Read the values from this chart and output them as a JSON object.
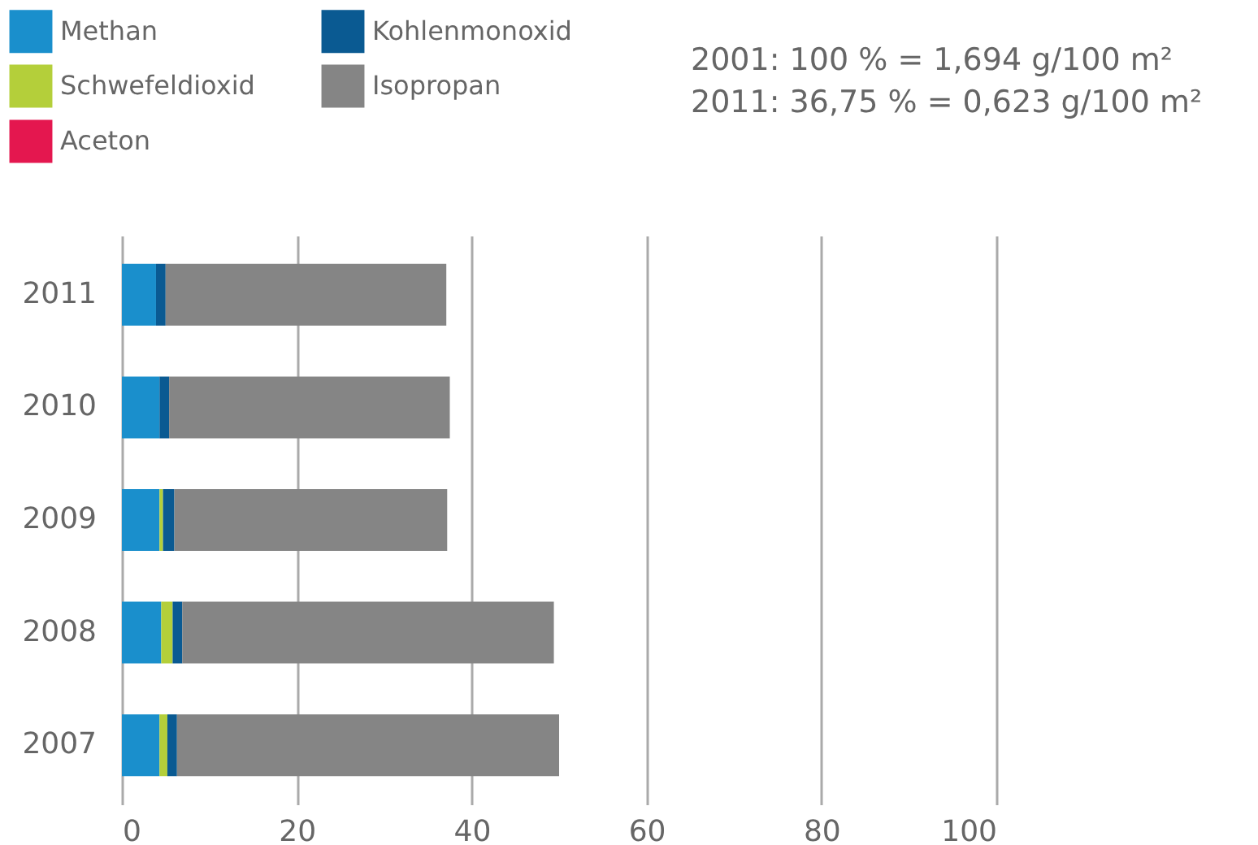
{
  "chart_data": {
    "type": "bar",
    "orientation": "horizontal",
    "stacked": true,
    "categories": [
      "2011",
      "2010",
      "2009",
      "2008",
      "2007"
    ],
    "series": [
      {
        "name": "Methan",
        "color": "#1a8fcc",
        "values": [
          3.9,
          4.3,
          4.3,
          4.5,
          4.3
        ]
      },
      {
        "name": "Schwefeldioxid",
        "color": "#b4cf3a",
        "values": [
          0,
          0,
          0.4,
          1.3,
          0.9
        ]
      },
      {
        "name": "Aceton",
        "color": "#e4174f",
        "values": [
          0,
          0,
          0,
          0,
          0
        ]
      },
      {
        "name": "Kohlenmonoxid",
        "color": "#0a5a92",
        "values": [
          1.1,
          1.1,
          1.3,
          1.1,
          1.1
        ]
      },
      {
        "name": "Isopropan",
        "color": "#858585",
        "values": [
          32.1,
          32.1,
          31.2,
          42.5,
          43.7
        ]
      }
    ],
    "xlim": [
      0,
      100
    ],
    "xticks": [
      0,
      20,
      40,
      60,
      80,
      100
    ],
    "grid": "x",
    "legend": "top left",
    "annotations": [
      "2001: 100 % = 1,694 g/100 m²",
      "2011: 36,75 % = 0,623 g/100 m²"
    ]
  }
}
